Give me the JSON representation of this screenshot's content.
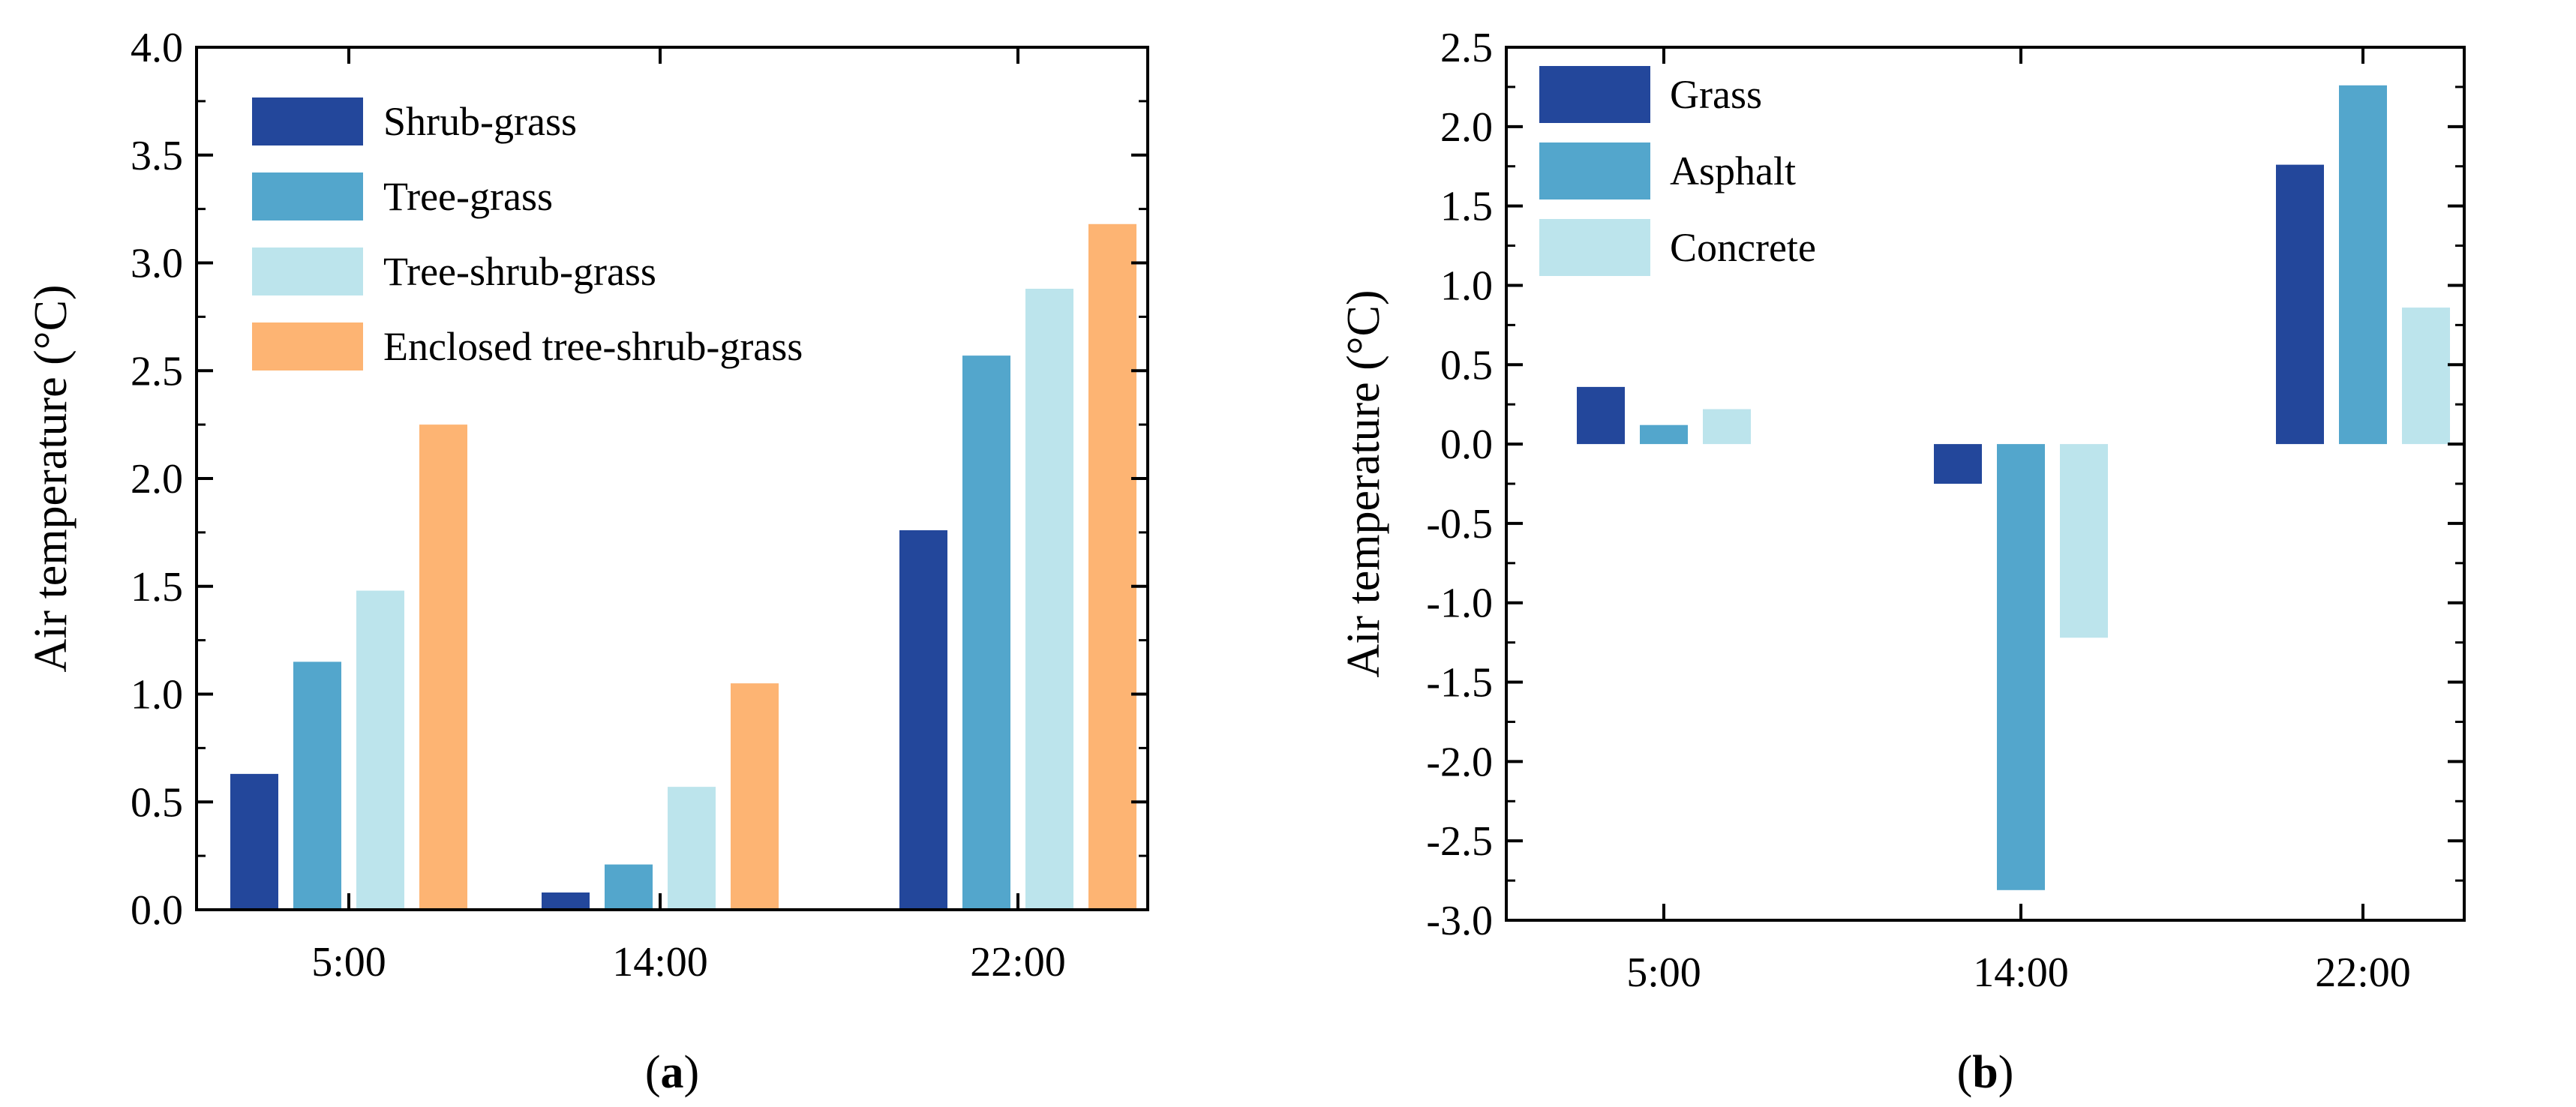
{
  "colors": {
    "dark_blue": "#23479b",
    "medium_blue": "#53a6cc",
    "light_blue": "#bce4ec",
    "orange": "#fdb473"
  },
  "chart_data": [
    {
      "type": "bar",
      "panel_label": "a",
      "ylabel": "Air temperature (°C)",
      "xlabel": "",
      "categories": [
        "5:00",
        "14:00",
        "22:00"
      ],
      "ylim": [
        0,
        4.0
      ],
      "yticks": [
        0.0,
        0.5,
        1.0,
        1.5,
        2.0,
        2.5,
        3.0,
        3.5,
        4.0
      ],
      "ytick_labels": [
        "0.0",
        "0.5",
        "1.0",
        "1.5",
        "2.0",
        "2.5",
        "3.0",
        "3.5",
        "4.0"
      ],
      "grid": false,
      "legend_position": "top-left",
      "series": [
        {
          "name": "Shrub-grass",
          "color": "#23479b",
          "values": [
            0.63,
            0.08,
            1.76
          ]
        },
        {
          "name": "Tree-grass",
          "color": "#53a6cc",
          "values": [
            1.15,
            0.21,
            2.57
          ]
        },
        {
          "name": "Tree-shrub-grass",
          "color": "#bce4ec",
          "values": [
            1.48,
            0.57,
            2.88
          ]
        },
        {
          "name": "Enclosed tree-shrub-grass",
          "color": "#fdb473",
          "values": [
            2.25,
            1.05,
            3.18
          ]
        }
      ]
    },
    {
      "type": "bar",
      "panel_label": "b",
      "ylabel": "Air temperature (°C)",
      "xlabel": "",
      "categories": [
        "5:00",
        "14:00",
        "22:00"
      ],
      "ylim": [
        -3.0,
        2.5
      ],
      "yticks": [
        -3.0,
        -2.5,
        -2.0,
        -1.5,
        -1.0,
        -0.5,
        0.0,
        0.5,
        1.0,
        1.5,
        2.0,
        2.5
      ],
      "ytick_labels": [
        "-3.0",
        "-2.5",
        "-2.0",
        "-1.5",
        "-1.0",
        "-0.5",
        "0.0",
        "0.5",
        "1.0",
        "1.5",
        "2.0",
        "2.5"
      ],
      "grid": false,
      "legend_position": "top-left",
      "series": [
        {
          "name": "Grass",
          "color": "#23479b",
          "values": [
            0.36,
            -0.25,
            1.76
          ]
        },
        {
          "name": "Asphalt",
          "color": "#53a6cc",
          "values": [
            0.12,
            -2.81,
            2.26
          ]
        },
        {
          "name": "Concrete",
          "color": "#bce4ec",
          "values": [
            0.22,
            -1.22,
            0.86
          ]
        }
      ]
    }
  ]
}
